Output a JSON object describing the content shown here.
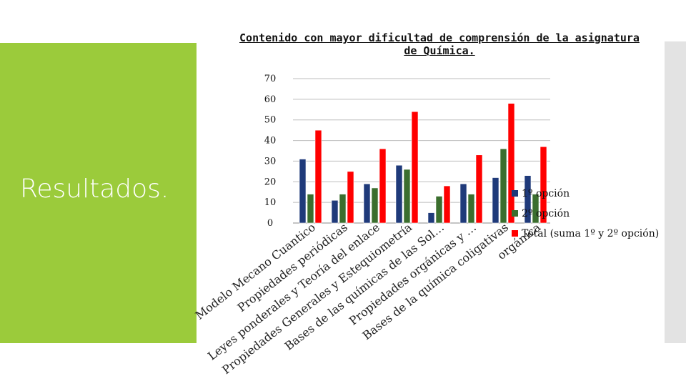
{
  "slide": {
    "heading": "Resultados."
  },
  "chart_data": {
    "type": "bar",
    "title": "Contenido con mayor dificultad de comprensión de la asignatura de Química.",
    "title_lines": [
      "Contenido con mayor dificultad de comprensión de la asignatura",
      "de Química."
    ],
    "categories": [
      "Modelo Mecano Cuantico",
      "Propiedades periódicas",
      "Leyes ponderales y Teoría del enlace",
      "Propiedades Generales y Estequiometría",
      "Bases de las químicas de las Sol…",
      "Propiedades orgánicas y …",
      "Bases de la química coligativas",
      "orgánica"
    ],
    "series": [
      {
        "name": "1º opción",
        "color": "#1f3a7a",
        "values": [
          31,
          11,
          19,
          28,
          5,
          19,
          22,
          23
        ]
      },
      {
        "name": "2º opción",
        "color": "#3b6e2e",
        "values": [
          14,
          14,
          17,
          26,
          13,
          14,
          36,
          14
        ]
      },
      {
        "name": "Total (suma 1º y 2º opción)",
        "color": "#ff0000",
        "values": [
          45,
          25,
          36,
          54,
          18,
          33,
          58,
          37
        ]
      }
    ],
    "ylim": [
      0,
      70
    ],
    "yticks": [
      0,
      10,
      20,
      30,
      40,
      50,
      60,
      70
    ],
    "grid": true,
    "legend_position": "right",
    "xlabel": "",
    "ylabel": ""
  }
}
